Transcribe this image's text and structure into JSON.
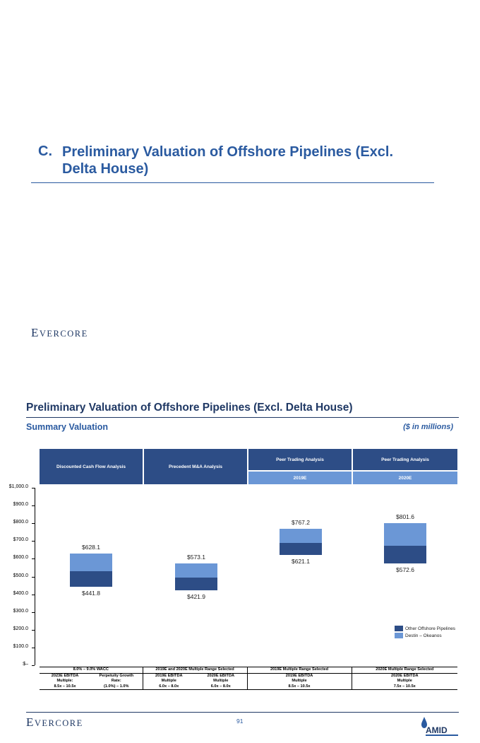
{
  "section": {
    "letter": "C.",
    "title": "Preliminary Valuation of Offshore Pipelines (Excl. Delta House)"
  },
  "brand": {
    "evercore_first": "E",
    "evercore_rest": "VERCORE",
    "amid": "AMID"
  },
  "page": {
    "title": "Preliminary Valuation of Offshore Pipelines (Excl. Delta House)",
    "subtitle": "Summary Valuation",
    "units": "($ in millions)",
    "page_number": "91"
  },
  "chart_headers": {
    "dcf": "Discounted Cash Flow Analysis",
    "precedent": "Precedent M&A Analysis",
    "peer1": "Peer Trading Analysis",
    "peer1_year": "2019E",
    "peer2": "Peer Trading Analysis",
    "peer2_year": "2020E"
  },
  "colors": {
    "other_offshore": "#2d4d86",
    "destin_okeanos": "#6b97d6",
    "accent": "#2a5aa0"
  },
  "chart_data": {
    "type": "bar",
    "subtype": "floating-stacked-range",
    "y_ticks": [
      "$1,000.0",
      "$900.0",
      "$800.0",
      "$700.0",
      "$600.0",
      "$500.0",
      "$400.0",
      "$300.0",
      "$200.0",
      "$100.0",
      "$–"
    ],
    "ylim": [
      0,
      1000
    ],
    "categories": [
      "Discounted Cash Flow Analysis",
      "Precedent M&A Analysis",
      "Peer Trading Analysis 2019E",
      "Peer Trading Analysis 2020E"
    ],
    "bars": [
      {
        "low": 441.8,
        "mid": 528,
        "high": 628.1,
        "low_label": "$441.8",
        "high_label": "$628.1"
      },
      {
        "low": 421.9,
        "mid": 494,
        "high": 573.1,
        "low_label": "$421.9",
        "high_label": "$573.1"
      },
      {
        "low": 621.1,
        "mid": 688,
        "high": 767.2,
        "low_label": "$621.1",
        "high_label": "$767.2"
      },
      {
        "low": 572.6,
        "mid": 673,
        "high": 801.6,
        "low_label": "$572.6",
        "high_label": "$801.6"
      }
    ],
    "legend": [
      "Other Offshore Pipelines",
      "Destin – Okeanos"
    ],
    "grid": false
  },
  "footnotes": {
    "g1": "8.0% – 9.0% WACC",
    "g2": "2019E and 2020E Multiple Range Selected",
    "g3": "2019E Multiple Range Selected",
    "g4": "2020E Multiple Range Selected",
    "c1a": "2023E EBITDA",
    "c1b": "Multiple:",
    "c1c": "8.5x – 10.5x",
    "c2a": "Perpetuity Growth",
    "c2b": "Rate:",
    "c2c": "(1.0%) – 1.0%",
    "c3a": "2019E EBITDA",
    "c3b": "Multiple",
    "c3c": "6.0x – 8.0x",
    "c4a": "2020E EBITDA",
    "c4b": "Multiple",
    "c4c": "6.0x – 8.0x",
    "c5a": "2019E EBITDA",
    "c5b": "Multiple",
    "c5c": "8.5x – 10.5x",
    "c6a": "2020E EBITDA",
    "c6b": "Multiple",
    "c6c": "7.5x – 10.5x"
  }
}
